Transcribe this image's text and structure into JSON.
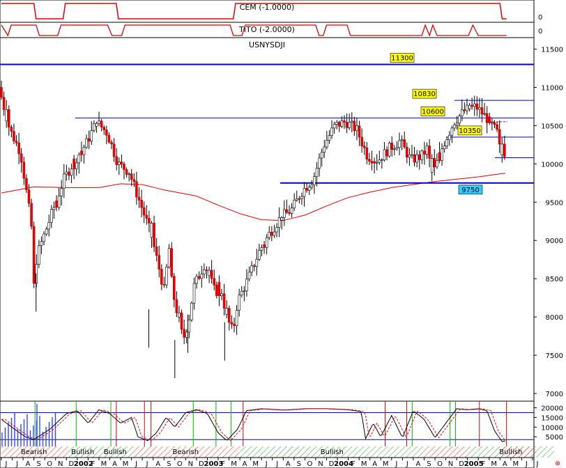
{
  "chart_data": {
    "type": "candlestick",
    "panels": {
      "cem": {
        "title": "CEM (-1.0000)",
        "scale": [
          "0"
        ],
        "color": "#dd0000"
      },
      "tito": {
        "title": "TITO (-2.0000)",
        "scale": [
          "0"
        ],
        "color": "#dd0000"
      },
      "main": {
        "title": "USNYSDJI",
        "ylim": [
          6900,
          11650
        ],
        "y_ticks": [
          7000,
          7500,
          8000,
          8500,
          9000,
          9500,
          10000,
          10500,
          11000,
          11500
        ],
        "horizontal_lines": [
          {
            "value": 11300,
            "label": "11300",
            "color": "#0000cc",
            "label_bg": "#ffff00"
          },
          {
            "value": 10830,
            "label": "10830",
            "color": "#0000cc",
            "label_bg": "#ffff00"
          },
          {
            "value": 10600,
            "label": "10600",
            "color": "#0000cc",
            "label_bg": "#ffff00"
          },
          {
            "value": 10350,
            "label": "10350",
            "color": "#0000cc",
            "label_bg": "#ffff00"
          },
          {
            "value": 10080,
            "label": "",
            "color": "#0000cc"
          },
          {
            "value": 9750,
            "label": "9750",
            "color": "#0000cc",
            "label_bg": "#33ccff"
          }
        ],
        "moving_average_color": "#dd0000",
        "up_color": "#ffffff",
        "down_color": "#ee0000"
      },
      "osc": {
        "y_ticks": [
          5000,
          10000,
          15000,
          20000
        ],
        "regimes": [
          {
            "label": "Bearish",
            "start": 0,
            "end": 6,
            "type": "bearish"
          },
          {
            "label": "Bullish",
            "start": 6,
            "end": 9,
            "type": "bullish"
          },
          {
            "label": "Bullish",
            "start": 9,
            "end": 12,
            "type": "bullish"
          },
          {
            "label": "Bearish",
            "start": 12,
            "end": 22,
            "type": "bearish"
          },
          {
            "label": "Bullish",
            "start": 22,
            "end": 39,
            "type": "bullish"
          },
          {
            "label": "Bullish",
            "start": 43,
            "end": 51,
            "type": "bullish"
          }
        ]
      }
    },
    "x_axis": {
      "months": [
        "J",
        "J",
        "A",
        "S",
        "O",
        "N",
        "D",
        "2002",
        "F",
        "M",
        "A",
        "M",
        "J",
        "J",
        "A",
        "S",
        "O",
        "N",
        "D",
        "2003",
        "F",
        "M",
        "A",
        "M",
        "J",
        "J",
        "A",
        "S",
        "O",
        "N",
        "D",
        "2004",
        "F",
        "M",
        "A",
        "M",
        "J",
        "J",
        "A",
        "S",
        "O",
        "N",
        "D",
        "2005",
        "F",
        "M",
        "A",
        "M",
        "J",
        "J"
      ],
      "month_strong": [
        7,
        19,
        31,
        43
      ]
    },
    "anchors": [
      [
        0,
        11000
      ],
      [
        1,
        10450
      ],
      [
        2,
        10150
      ],
      [
        3,
        9200
      ],
      [
        3.1,
        8200
      ],
      [
        3.5,
        8800
      ],
      [
        4,
        9000
      ],
      [
        5,
        9400
      ],
      [
        6,
        9800
      ],
      [
        7,
        10050
      ],
      [
        8,
        10250
      ],
      [
        9,
        10550
      ],
      [
        10,
        10400
      ],
      [
        11,
        10000
      ],
      [
        12,
        9900
      ],
      [
        13,
        9500
      ],
      [
        14,
        9100
      ],
      [
        15,
        8500
      ],
      [
        15.2,
        8300
      ],
      [
        15.7,
        8900
      ],
      [
        16,
        8350
      ],
      [
        17,
        7700
      ],
      [
        17.5,
        7950
      ],
      [
        18,
        8400
      ],
      [
        19,
        8700
      ],
      [
        20,
        8300
      ],
      [
        20.4,
        8450
      ],
      [
        21,
        8000
      ],
      [
        21.6,
        7800
      ],
      [
        22,
        8200
      ],
      [
        23,
        8500
      ],
      [
        24,
        8850
      ],
      [
        25,
        9100
      ],
      [
        26,
        9300
      ],
      [
        27,
        9400
      ],
      [
        28,
        9650
      ],
      [
        29,
        9800
      ],
      [
        30,
        10250
      ],
      [
        31,
        10500
      ],
      [
        32,
        10550
      ],
      [
        33,
        10450
      ],
      [
        34,
        10100
      ],
      [
        35,
        10050
      ],
      [
        36,
        10200
      ],
      [
        37,
        10300
      ],
      [
        38,
        10050
      ],
      [
        39,
        10100
      ],
      [
        39.5,
        10200
      ],
      [
        40,
        9850
      ],
      [
        41,
        10250
      ],
      [
        42,
        10550
      ],
      [
        43,
        10700
      ],
      [
        44,
        10750
      ],
      [
        45,
        10600
      ],
      [
        46,
        10400
      ],
      [
        46.3,
        10100
      ],
      [
        46.6,
        10150
      ]
    ],
    "ma_anchors": [
      [
        0,
        9620
      ],
      [
        3,
        9700
      ],
      [
        6,
        9690
      ],
      [
        9,
        9690
      ],
      [
        11,
        9740
      ],
      [
        13,
        9730
      ],
      [
        15,
        9660
      ],
      [
        18,
        9580
      ],
      [
        20,
        9460
      ],
      [
        22,
        9350
      ],
      [
        24,
        9270
      ],
      [
        26,
        9260
      ],
      [
        28,
        9330
      ],
      [
        30,
        9450
      ],
      [
        32,
        9560
      ],
      [
        34,
        9630
      ],
      [
        36,
        9690
      ],
      [
        38,
        9730
      ],
      [
        40,
        9770
      ],
      [
        42,
        9800
      ],
      [
        44,
        9830
      ],
      [
        46,
        9870
      ],
      [
        46.6,
        9880
      ]
    ],
    "up_weeks": [
      0.4,
      3.3,
      4.4,
      8.8,
      13.8,
      15.5,
      16.4,
      17.8,
      18.5,
      19.2,
      20.8,
      21.8,
      22.9,
      23.8,
      25.9,
      27.2,
      29.1,
      30.4,
      32.1,
      35.2,
      36.8,
      38.3,
      39.8,
      41.1,
      43.3,
      46.2
    ],
    "down_weeks": [
      3.1,
      5.1,
      6.6,
      7.5,
      13.2,
      15.1,
      16.1,
      20.2,
      21.2,
      24.3,
      28.1,
      31.8,
      33.4,
      34.3,
      37.1,
      38.6,
      40.4,
      44.3,
      45.1,
      45.8,
      46.4
    ],
    "stoch_signals_buy": [
      3.1,
      6.9,
      10.1,
      17.7,
      19.8,
      21.2,
      37.9,
      41.4,
      41.9
    ],
    "stoch_signals_sell": [
      10.6,
      13.2,
      13.8,
      22.3,
      35.4,
      37.4,
      44.1,
      46.6
    ]
  }
}
